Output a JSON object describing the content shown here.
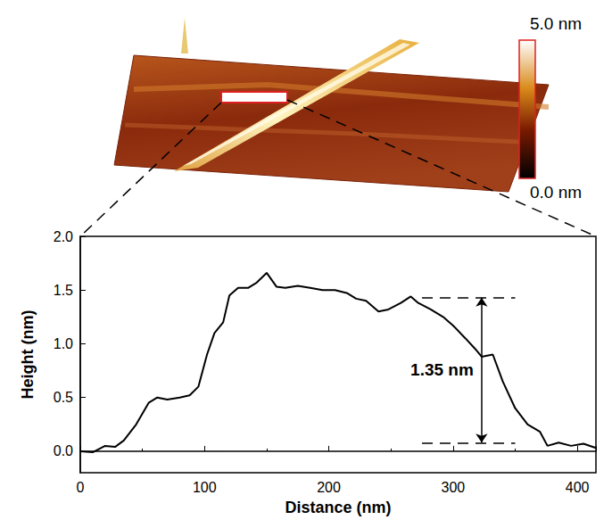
{
  "chart_data": {
    "type": "line",
    "xlabel": "Distance (nm)",
    "ylabel": "Height (nm)",
    "x": [
      0,
      10,
      20,
      28,
      35,
      45,
      55,
      62,
      70,
      80,
      88,
      95,
      102,
      108,
      115,
      120,
      127,
      135,
      142,
      150,
      158,
      165,
      175,
      185,
      195,
      205,
      215,
      222,
      230,
      240,
      248,
      258,
      266,
      272,
      282,
      292,
      300,
      310,
      318,
      323,
      332,
      340,
      350,
      360,
      370,
      376,
      385,
      395,
      405,
      415
    ],
    "values": [
      0,
      -0.01,
      0.05,
      0.04,
      0.1,
      0.25,
      0.45,
      0.5,
      0.48,
      0.5,
      0.52,
      0.6,
      0.9,
      1.1,
      1.2,
      1.45,
      1.52,
      1.52,
      1.57,
      1.66,
      1.53,
      1.52,
      1.54,
      1.52,
      1.5,
      1.5,
      1.47,
      1.42,
      1.4,
      1.3,
      1.32,
      1.38,
      1.44,
      1.38,
      1.32,
      1.25,
      1.17,
      1.05,
      0.95,
      0.88,
      0.9,
      0.65,
      0.4,
      0.25,
      0.18,
      0.05,
      0.08,
      0.05,
      0.07,
      0.03
    ],
    "color": "#000000",
    "line_style": "solid",
    "xlim": [
      0,
      415
    ],
    "xticks": [
      0,
      100,
      200,
      300,
      400
    ],
    "ylim": [
      -0.2,
      2.0
    ],
    "yticks": [
      {
        "value": 0,
        "label": "0.0"
      },
      {
        "value": 0.5,
        "label": "0.5"
      },
      {
        "value": 1.0,
        "label": "1.0"
      },
      {
        "value": 1.5,
        "label": "1.5"
      },
      {
        "value": 2.0,
        "label": "2.0"
      }
    ],
    "grid": false,
    "annotation": {
      "text": "1.35 nm",
      "x": 323,
      "y_top": 1.43,
      "y_bottom": 0.08,
      "x_range": [
        275,
        350
      ]
    }
  },
  "afm_image": {
    "colorbar": {
      "range": [
        0,
        5
      ],
      "ticks": [
        {
          "value": 5,
          "label": "5.0 nm"
        },
        {
          "value": 0,
          "label": "0.0 nm"
        }
      ]
    }
  }
}
